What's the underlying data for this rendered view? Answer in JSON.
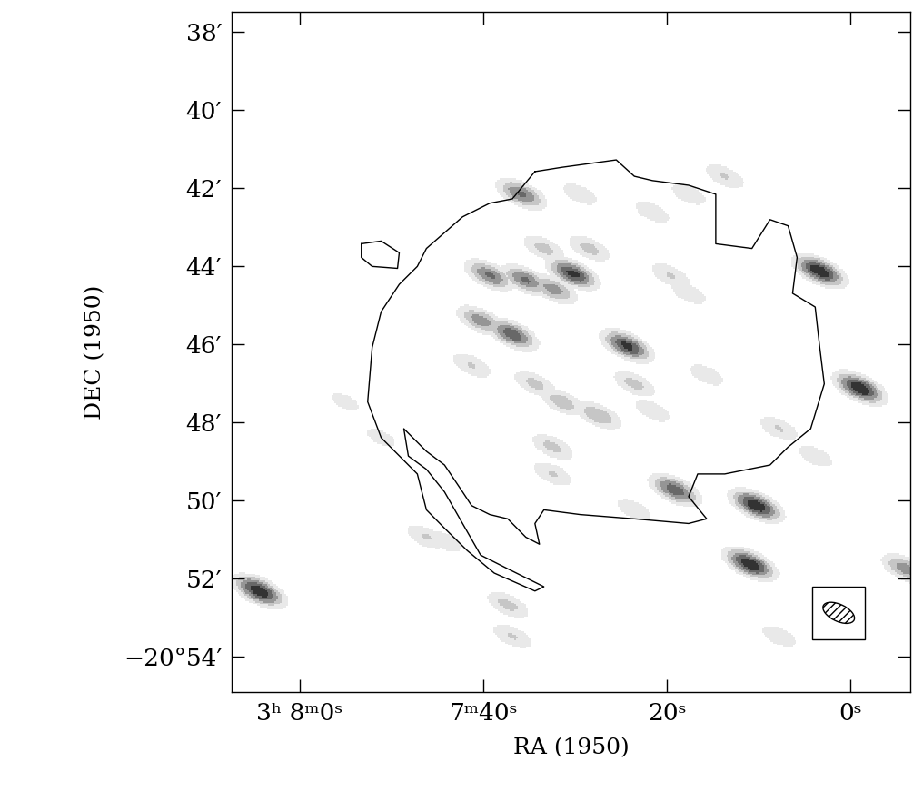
{
  "chart_data": {
    "type": "image",
    "xlabel": "RA (1950)",
    "ylabel": "DEC (1950)",
    "xlim": [
      67.4,
      -6.5
    ],
    "ylim": [
      54.92,
      37.49
    ],
    "xticks": [
      {
        "value": 60,
        "label": "3ʰ 8ᵐ0ˢ"
      },
      {
        "value": 40,
        "label": "7ᵐ40ˢ"
      },
      {
        "value": 20,
        "label": "20ˢ"
      },
      {
        "value": 0,
        "label": "0ˢ"
      }
    ],
    "yticks": [
      {
        "value": 38,
        "label": "38′"
      },
      {
        "value": 40,
        "label": "40′"
      },
      {
        "value": 42,
        "label": "42′"
      },
      {
        "value": 44,
        "label": "44′"
      },
      {
        "value": 46,
        "label": "46′"
      },
      {
        "value": 48,
        "label": "48′"
      },
      {
        "value": 50,
        "label": "50′"
      },
      {
        "value": 52,
        "label": "52′"
      },
      {
        "value": 54,
        "label": "−20°54′"
      }
    ],
    "beam": {
      "major_arcmin": 1.0,
      "minor_arcmin": 0.45,
      "pa_deg": 65
    },
    "sources": [
      {
        "ra": 64.43,
        "dec": 52.33,
        "peak": 1.0
      },
      {
        "ra": 3.36,
        "dec": 44.13,
        "peak": 1.0
      },
      {
        "ra": -1.01,
        "dec": 47.13,
        "peak": 1.0
      },
      {
        "ra": 10.26,
        "dec": 50.14,
        "peak": 1.0
      },
      {
        "ra": 10.95,
        "dec": 51.64,
        "peak": 1.0
      },
      {
        "ra": 19.12,
        "dec": 49.74,
        "peak": 0.8
      },
      {
        "ra": 24.34,
        "dec": 46.05,
        "peak": 0.9
      },
      {
        "ra": 30.25,
        "dec": 44.2,
        "peak": 0.9
      },
      {
        "ra": 36.85,
        "dec": 45.75,
        "peak": 0.8
      },
      {
        "ra": 35.87,
        "dec": 42.16,
        "peak": 0.7
      },
      {
        "ra": 39.31,
        "dec": 44.24,
        "peak": 0.7
      },
      {
        "ra": 35.38,
        "dec": 44.36,
        "peak": 0.7
      },
      {
        "ra": 32.42,
        "dec": 44.59,
        "peak": 0.6
      },
      {
        "ra": 40.3,
        "dec": 45.4,
        "peak": 0.6
      },
      {
        "ra": 41.29,
        "dec": 46.55,
        "peak": 0.35
      },
      {
        "ra": 28.48,
        "dec": 43.55,
        "peak": 0.4
      },
      {
        "ra": 33.41,
        "dec": 43.55,
        "peak": 0.4
      },
      {
        "ra": 27.49,
        "dec": 47.83,
        "peak": 0.5
      },
      {
        "ra": 31.44,
        "dec": 47.48,
        "peak": 0.45
      },
      {
        "ra": 34.39,
        "dec": 47.02,
        "peak": 0.4
      },
      {
        "ra": 23.56,
        "dec": 47.02,
        "peak": 0.4
      },
      {
        "ra": 21.59,
        "dec": 47.71,
        "peak": 0.3
      },
      {
        "ra": 19.62,
        "dec": 44.24,
        "peak": 0.35
      },
      {
        "ra": 17.65,
        "dec": 44.7,
        "peak": 0.3
      },
      {
        "ra": 32.42,
        "dec": 48.64,
        "peak": 0.4
      },
      {
        "ra": 32.42,
        "dec": 49.33,
        "peak": 0.35
      },
      {
        "ra": 46.21,
        "dec": 50.95,
        "peak": 0.35
      },
      {
        "ra": 44.24,
        "dec": 51.06,
        "peak": 0.3
      },
      {
        "ra": 37.35,
        "dec": 52.68,
        "peak": 0.4
      },
      {
        "ra": 36.85,
        "dec": 53.49,
        "peak": 0.35
      },
      {
        "ra": 13.71,
        "dec": 41.7,
        "peak": 0.35
      },
      {
        "ra": 17.65,
        "dec": 42.16,
        "peak": 0.3
      },
      {
        "ra": 21.59,
        "dec": 42.62,
        "peak": 0.3
      },
      {
        "ra": -6.0,
        "dec": 51.76,
        "peak": 0.6
      },
      {
        "ra": 7.8,
        "dec": 53.49,
        "peak": 0.3
      },
      {
        "ra": 23.56,
        "dec": 50.25,
        "peak": 0.3
      },
      {
        "ra": 29.47,
        "dec": 42.16,
        "peak": 0.3
      },
      {
        "ra": 15.68,
        "dec": 46.79,
        "peak": 0.3
      },
      {
        "ra": 7.8,
        "dec": 48.17,
        "peak": 0.35
      },
      {
        "ra": 55.08,
        "dec": 47.48,
        "peak": 0.25
      },
      {
        "ra": 51.14,
        "dec": 48.4,
        "peak": 0.25
      },
      {
        "ra": 3.86,
        "dec": 48.87,
        "peak": 0.3
      }
    ],
    "contours": [
      {
        "ra": [
          34.39,
          31.44,
          25.53,
          23.56,
          21.59,
          17.65,
          14.69,
          14.69,
          10.75,
          8.78,
          6.81,
          5.83,
          6.32,
          3.86,
          3.36,
          2.87,
          4.35,
          6.81,
          8.78,
          13.71,
          16.66,
          17.65,
          15.68,
          17.65,
          23.56,
          29.47,
          33.41,
          34.39,
          33.9,
          35.38,
          37.35,
          39.31,
          41.29,
          42.27,
          44.24,
          46.21,
          48.67,
          48.18,
          46.21,
          44.24,
          42.27,
          40.3,
          37.35,
          33.41,
          34.39,
          38.82,
          41.78,
          44.24,
          46.21,
          47.2,
          51.14,
          52.61,
          52.12,
          51.14,
          49.17,
          47.2,
          46.21,
          42.27,
          39.31,
          36.85,
          34.39
        ],
        "dec": [
          41.58,
          41.47,
          41.28,
          41.7,
          41.81,
          41.93,
          42.16,
          43.43,
          43.55,
          42.81,
          42.97,
          43.78,
          44.7,
          45.05,
          46.09,
          47.02,
          48.17,
          48.64,
          49.1,
          49.33,
          49.33,
          49.91,
          50.48,
          50.6,
          50.48,
          50.37,
          50.25,
          50.6,
          51.13,
          50.95,
          50.48,
          50.37,
          50.14,
          49.79,
          49.1,
          48.75,
          48.17,
          48.87,
          49.21,
          49.79,
          50.6,
          51.41,
          51.76,
          52.22,
          52.33,
          51.87,
          51.29,
          50.72,
          50.25,
          49.33,
          48.4,
          47.48,
          46.09,
          45.17,
          44.47,
          44.01,
          43.55,
          42.74,
          42.39,
          42.28,
          41.58
        ]
      },
      {
        "ra": [
          53.3,
          51.14,
          49.17,
          49.36,
          52.12,
          53.3,
          53.3
        ],
        "dec": [
          43.43,
          43.36,
          43.66,
          44.06,
          44.01,
          43.78,
          43.43
        ]
      }
    ]
  }
}
